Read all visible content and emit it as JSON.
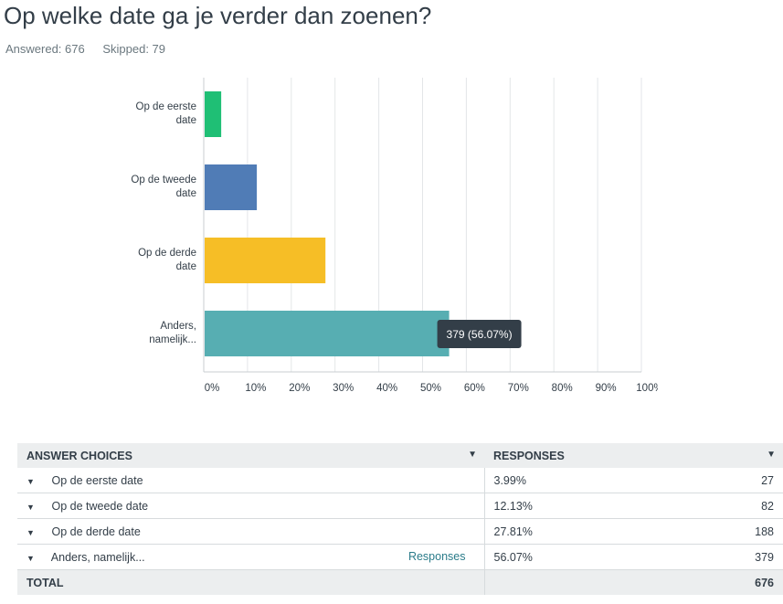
{
  "question": {
    "title": "Op welke date ga je verder dan zoenen?",
    "answered": "Answered: 676",
    "skipped": "Skipped: 79"
  },
  "chart_data": {
    "type": "bar",
    "orientation": "horizontal",
    "categories": [
      "Op de eerste date",
      "Op de tweede date",
      "Op de derde date",
      "Anders, namelijk..."
    ],
    "category_labels": [
      [
        "Op de eerste",
        "date"
      ],
      [
        "Op de tweede",
        "date"
      ],
      [
        "Op de derde",
        "date"
      ],
      [
        "Anders,",
        "namelijk..."
      ]
    ],
    "values": [
      3.99,
      12.13,
      27.81,
      56.07
    ],
    "colors": [
      "#1fbf75",
      "#507cb6",
      "#f6be26",
      "#57aeb2"
    ],
    "xlim": [
      0,
      100
    ],
    "xticks": [
      "0%",
      "10%",
      "20%",
      "30%",
      "40%",
      "50%",
      "60%",
      "70%",
      "80%",
      "90%",
      "100%"
    ],
    "grid": true,
    "tooltip": {
      "category_index": 3,
      "text": "379 (56.07%)"
    }
  },
  "table": {
    "headers": {
      "choices": "ANSWER CHOICES",
      "responses": "RESPONSES"
    },
    "rows": [
      {
        "choice": "Op de eerste date",
        "link": "",
        "percent": "3.99%",
        "count": "27"
      },
      {
        "choice": "Op de tweede date",
        "link": "",
        "percent": "12.13%",
        "count": "82"
      },
      {
        "choice": "Op de derde date",
        "link": "",
        "percent": "27.81%",
        "count": "188"
      },
      {
        "choice": "Anders, namelijk...",
        "link": "Responses",
        "percent": "56.07%",
        "count": "379"
      }
    ],
    "total": {
      "label": "TOTAL",
      "count": "676"
    }
  },
  "icons": {
    "sort": "sort-down-icon",
    "expand": "caret-down-icon"
  }
}
